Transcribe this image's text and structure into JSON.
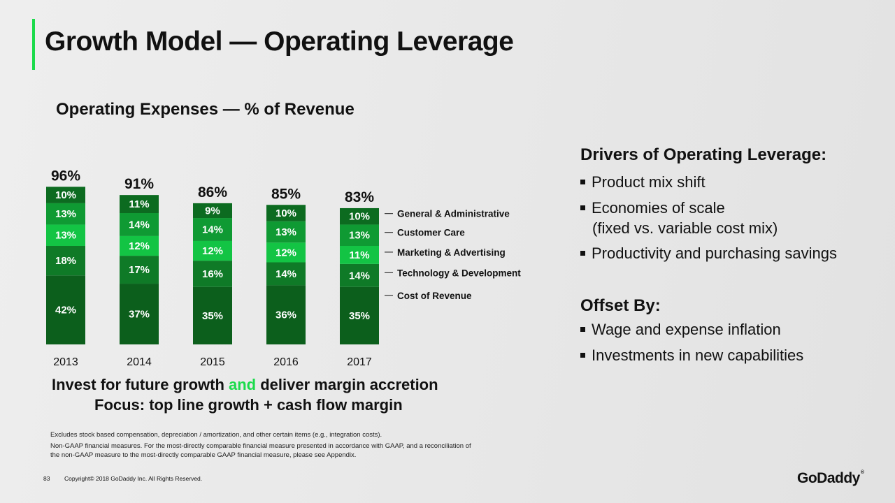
{
  "title": "Growth Model — Operating Leverage",
  "subtitle": "Operating Expenses — % of Revenue",
  "colors": {
    "accent": "#1bdb4b",
    "series": [
      "#0c5f1c",
      "#0f7a27",
      "#13c444",
      "#0f9a33",
      "#0c6b20"
    ]
  },
  "chart_data": {
    "type": "bar",
    "stacked": true,
    "categories": [
      "2013",
      "2014",
      "2015",
      "2016",
      "2017"
    ],
    "totals": [
      "96%",
      "91%",
      "86%",
      "85%",
      "83%"
    ],
    "series": [
      {
        "name": "Cost of Revenue",
        "values": [
          42,
          37,
          35,
          36,
          35
        ],
        "labels": [
          "42%",
          "37%",
          "35%",
          "36%",
          "35%"
        ]
      },
      {
        "name": "Technology & Development",
        "values": [
          18,
          17,
          16,
          14,
          14
        ],
        "labels": [
          "18%",
          "17%",
          "16%",
          "14%",
          "14%"
        ]
      },
      {
        "name": "Marketing & Advertising",
        "values": [
          13,
          12,
          12,
          12,
          11
        ],
        "labels": [
          "13%",
          "12%",
          "12%",
          "12%",
          "11%"
        ]
      },
      {
        "name": "Customer Care",
        "values": [
          13,
          14,
          14,
          13,
          13
        ],
        "labels": [
          "13%",
          "14%",
          "14%",
          "13%",
          "13%"
        ]
      },
      {
        "name": "General & Administrative",
        "values": [
          10,
          11,
          9,
          10,
          10
        ],
        "labels": [
          "10%",
          "11%",
          "9%",
          "10%",
          "10%"
        ]
      }
    ]
  },
  "tagline": {
    "before": "Invest for future growth ",
    "highlight": "and",
    "after": " deliver margin accretion"
  },
  "focus": "Focus: top line growth + cash flow margin",
  "footnotes": [
    "Excludes stock based compensation, depreciation / amortization, and other certain items (e.g., integration costs).",
    "Non-GAAP financial measures. For the most-directly comparable financial measure presented in accordance with GAAP, and a reconciliation of",
    "the non-GAAP measure to the most-directly comparable GAAP financial measure, please see Appendix."
  ],
  "drivers": {
    "heading": "Drivers of Operating Leverage:",
    "items": [
      "Product mix shift",
      "Economies of scale",
      "(fixed vs. variable cost mix)",
      "Productivity and purchasing savings"
    ]
  },
  "offset": {
    "heading": "Offset By:",
    "items": [
      "Wage and expense inflation",
      "Investments in new capabilities"
    ]
  },
  "footer": {
    "page": "83",
    "copyright": "Copyright© 2018 GoDaddy Inc.   All Rights Reserved.",
    "logo": "GoDaddy",
    "logo_tm": "®"
  }
}
